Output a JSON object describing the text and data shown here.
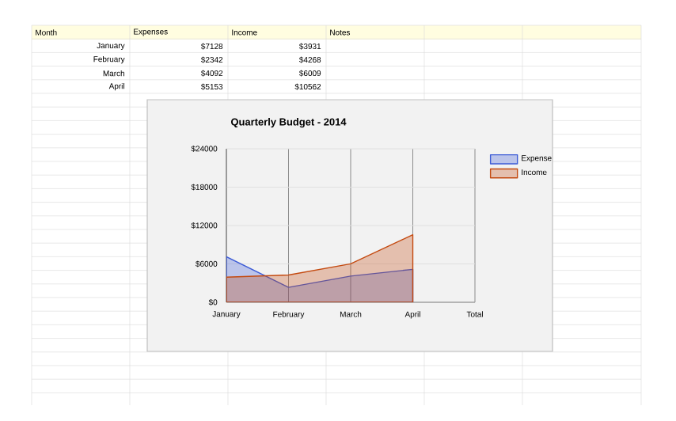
{
  "chart_data": {
    "type": "area",
    "title": "Quarterly Budget - 2014",
    "categories": [
      "January",
      "February",
      "March",
      "April",
      "Total"
    ],
    "series": [
      {
        "name": "Expense",
        "color": "#3c5bd6",
        "values": [
          7128,
          2342,
          4092,
          5153,
          null
        ]
      },
      {
        "name": "Income",
        "color": "#c44a10",
        "values": [
          3931,
          4268,
          6009,
          10562,
          null
        ]
      }
    ],
    "ylim": [
      0,
      24000
    ],
    "yticks": [
      {
        "value": 0,
        "label": "$0"
      },
      {
        "value": 6000,
        "label": "$6000"
      },
      {
        "value": 12000,
        "label": "$12000"
      },
      {
        "value": 18000,
        "label": "$18000"
      },
      {
        "value": 24000,
        "label": "$24000"
      }
    ],
    "grid": true,
    "legend": "top right",
    "annotations": [
      "Month",
      "Expenses",
      "Income",
      "Notes",
      "January",
      "$7128",
      "$3931",
      "February",
      "$2342",
      "$4268",
      "March",
      "$4092",
      "$6009",
      "April",
      "$5153",
      "$10562"
    ]
  }
}
